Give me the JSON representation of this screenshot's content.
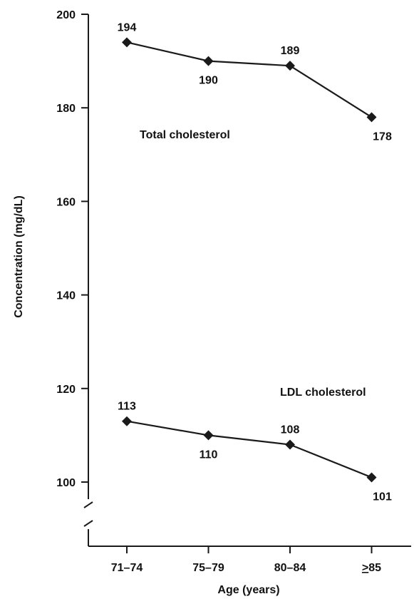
{
  "chart_data": {
    "type": "line",
    "categories": [
      "71–74",
      "75–79",
      "80–84",
      "≥85"
    ],
    "series": [
      {
        "name": "Total cholesterol",
        "values": [
          194,
          190,
          189,
          178
        ]
      },
      {
        "name": "LDL cholesterol",
        "values": [
          113,
          110,
          108,
          101
        ]
      }
    ],
    "data_labels": [
      [
        "194",
        "190",
        "189",
        "178"
      ],
      [
        "113",
        "110",
        "108",
        "101"
      ]
    ],
    "xlabel": "Age (years)",
    "ylabel": "Concentration (mg/dL)",
    "yticks": [
      100,
      120,
      140,
      160,
      180,
      200
    ],
    "ytick_labels": [
      "100",
      "120",
      "140",
      "160",
      "180",
      "200"
    ],
    "ylim": [
      100,
      200
    ],
    "axis_break": true,
    "grid": false,
    "marker": "diamond",
    "line_color": "#1a1a1a"
  }
}
